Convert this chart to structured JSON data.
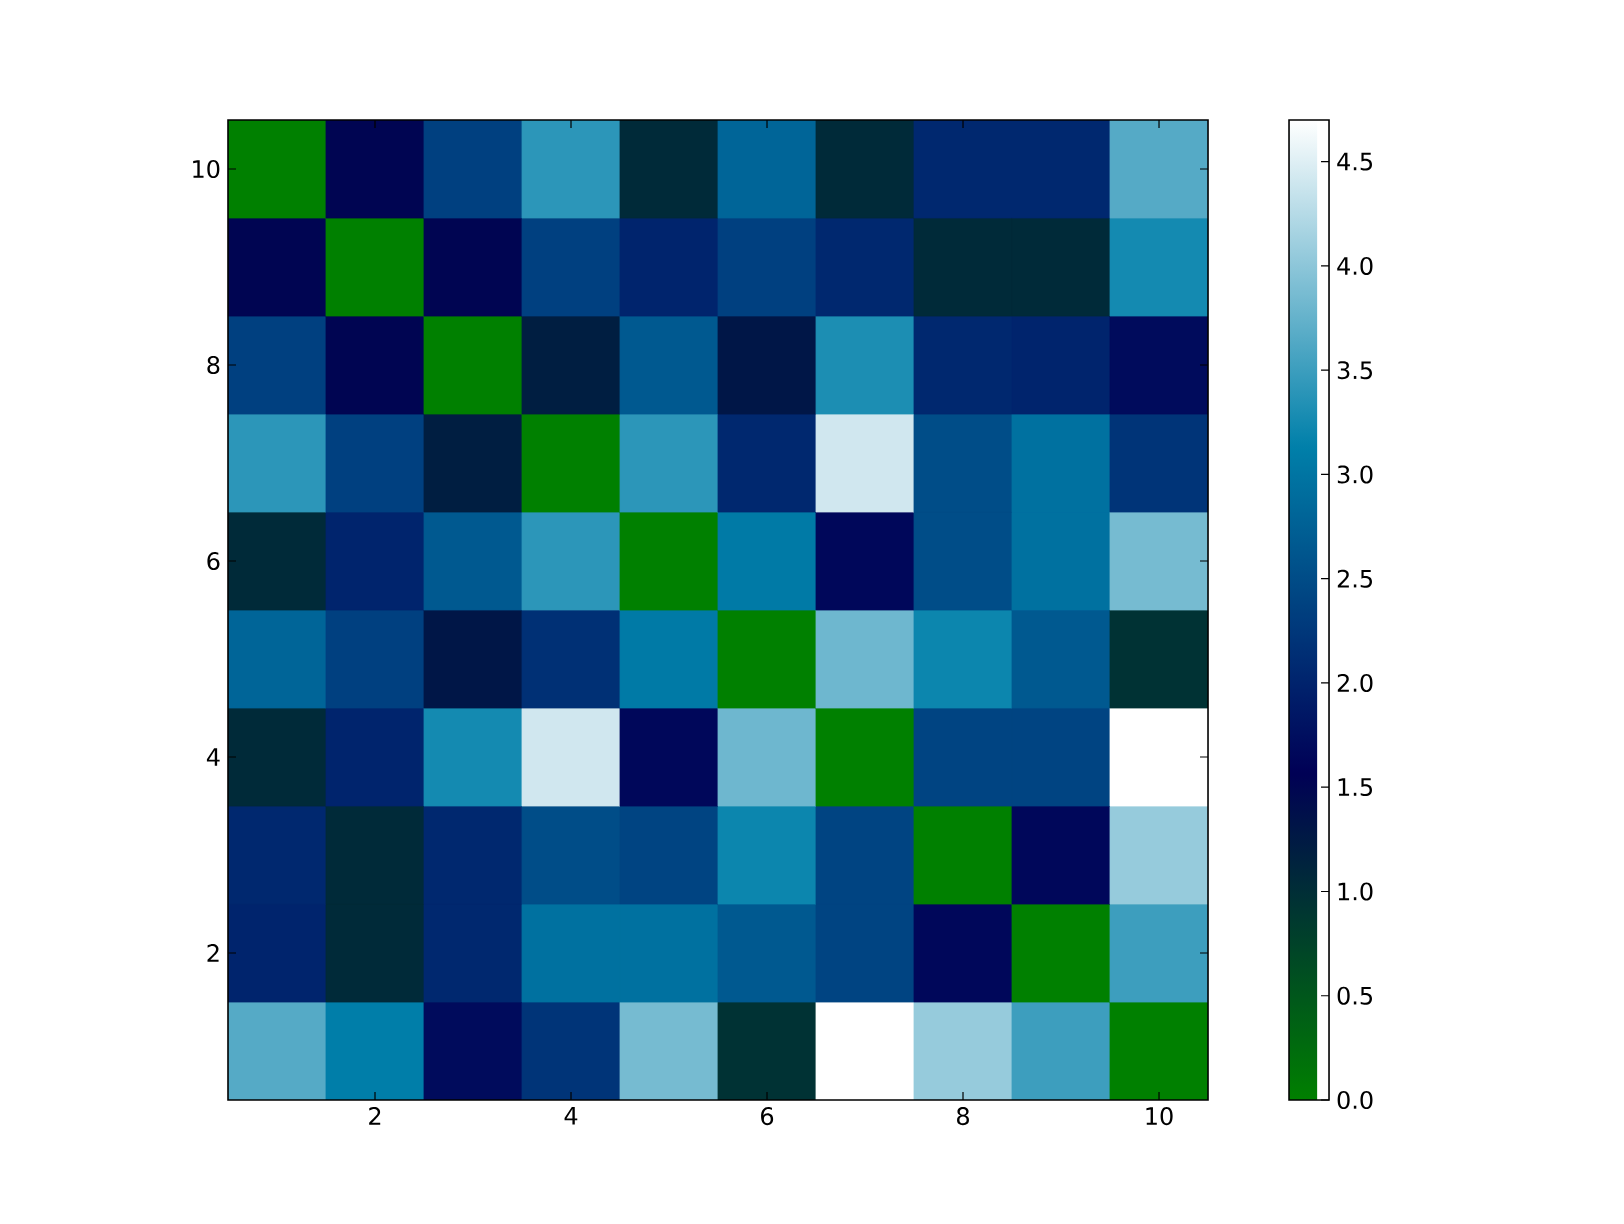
{
  "chart_data": {
    "type": "heatmap",
    "categories": [
      null,
      "2",
      null,
      "4",
      null,
      "6",
      null,
      "8",
      null,
      "10"
    ],
    "y_categories": [
      "10",
      null,
      "8",
      null,
      "6",
      null,
      "4",
      null,
      "2",
      null
    ],
    "cells": [
      [
        0,
        1.5,
        2.35,
        3.4,
        1.05,
        2.8,
        1.05,
        2.05,
        2.05,
        3.65
      ],
      [
        1.5,
        0,
        1.5,
        2.35,
        2.0,
        2.35,
        2.05,
        1.05,
        1.05,
        3.25
      ],
      [
        2.35,
        1.5,
        0,
        1.2,
        2.65,
        1.3,
        3.3,
        2.05,
        2.0,
        1.7
      ],
      [
        3.4,
        2.35,
        1.2,
        0,
        3.4,
        2.05,
        4.4,
        2.5,
        2.95,
        2.2
      ],
      [
        1.05,
        2.0,
        2.65,
        3.4,
        0,
        3.05,
        1.65,
        2.5,
        2.95,
        3.85
      ],
      [
        2.8,
        2.35,
        1.3,
        2.15,
        3.05,
        0,
        3.8,
        3.2,
        2.65,
        0.95
      ],
      [
        1.05,
        2.0,
        3.25,
        4.4,
        1.65,
        3.8,
        0,
        2.4,
        2.4,
        4.7
      ],
      [
        2.05,
        1.05,
        2.05,
        2.5,
        2.4,
        3.2,
        2.4,
        0,
        1.65,
        4.05
      ],
      [
        2.0,
        1.05,
        2.05,
        2.95,
        2.95,
        2.65,
        2.4,
        1.65,
        0,
        3.5
      ],
      [
        3.65,
        3.1,
        1.7,
        2.2,
        3.85,
        0.95,
        4.7,
        4.05,
        3.5,
        0
      ]
    ],
    "clim": [
      0,
      4.7
    ],
    "cticks": [
      {
        "value": 0,
        "label": "0.0"
      },
      {
        "value": 0.5,
        "label": "0.5"
      },
      {
        "value": 1,
        "label": "1.0"
      },
      {
        "value": 1.5,
        "label": "1.5"
      },
      {
        "value": 2,
        "label": "2.0"
      },
      {
        "value": 2.5,
        "label": "2.5"
      },
      {
        "value": 3,
        "label": "3.0"
      },
      {
        "value": 3.5,
        "label": "3.5"
      },
      {
        "value": 4,
        "label": "4.0"
      },
      {
        "value": 4.5,
        "label": "4.5"
      }
    ]
  }
}
